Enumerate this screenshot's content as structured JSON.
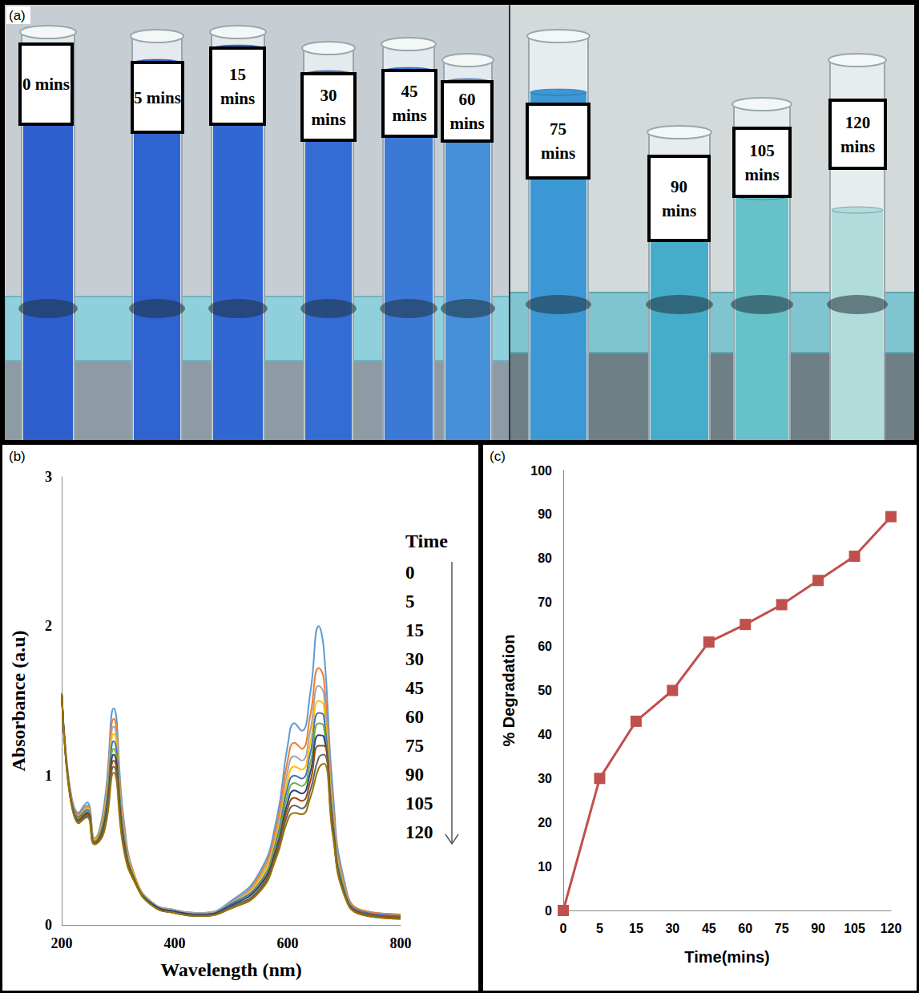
{
  "photo": {
    "letter": "(a)",
    "tubes": [
      {
        "label": "0 mins",
        "color": "#2d5fcf"
      },
      {
        "label": "5 mins",
        "color": "#2e63d0"
      },
      {
        "label": "15 mins",
        "color": "#3067d2"
      },
      {
        "label": "30 mins",
        "color": "#336dd3"
      },
      {
        "label": "45 mins",
        "color": "#3a7ad6"
      },
      {
        "label": "60 mins",
        "color": "#4590d8"
      },
      {
        "label": "75 mins",
        "color": "#3b98d4"
      },
      {
        "label": "90 mins",
        "color": "#45adc9"
      },
      {
        "label": "105 mins",
        "color": "#67c1c9"
      },
      {
        "label": "120 mins",
        "color": "#b2dcd9"
      }
    ]
  },
  "chart_data": [
    {
      "letter": "(b)",
      "type": "line",
      "xlabel": "Wavelength (nm)",
      "ylabel": "Absorbance (a.u)",
      "x": [
        200,
        230,
        245,
        258,
        275,
        292,
        310,
        330,
        360,
        400,
        450,
        500,
        550,
        580,
        600,
        612,
        625,
        640,
        655,
        664,
        680,
        700,
        730,
        800
      ],
      "series": [
        {
          "name": "0",
          "color": "#5b9bd5",
          "values": [
            1.55,
            0.75,
            0.82,
            0.58,
            0.8,
            1.45,
            0.7,
            0.32,
            0.15,
            0.1,
            0.08,
            0.16,
            0.35,
            0.7,
            1.2,
            1.35,
            1.3,
            1.55,
            2.0,
            1.85,
            0.9,
            0.3,
            0.1,
            0.07
          ]
        },
        {
          "name": "5",
          "color": "#ed7d31",
          "values": [
            1.55,
            0.74,
            0.8,
            0.58,
            0.77,
            1.38,
            0.67,
            0.32,
            0.15,
            0.1,
            0.08,
            0.15,
            0.33,
            0.66,
            1.1,
            1.22,
            1.18,
            1.4,
            1.72,
            1.65,
            0.82,
            0.28,
            0.1,
            0.07
          ]
        },
        {
          "name": "15",
          "color": "#a5a5a5",
          "values": [
            1.55,
            0.73,
            0.79,
            0.57,
            0.75,
            1.33,
            0.65,
            0.31,
            0.15,
            0.1,
            0.08,
            0.15,
            0.31,
            0.62,
            1.03,
            1.13,
            1.1,
            1.3,
            1.6,
            1.55,
            0.78,
            0.26,
            0.09,
            0.06
          ]
        },
        {
          "name": "30",
          "color": "#ffc000",
          "values": [
            1.55,
            0.72,
            0.78,
            0.57,
            0.73,
            1.28,
            0.62,
            0.31,
            0.14,
            0.09,
            0.07,
            0.14,
            0.3,
            0.59,
            0.97,
            1.06,
            1.04,
            1.22,
            1.5,
            1.47,
            0.74,
            0.25,
            0.09,
            0.06
          ]
        },
        {
          "name": "45",
          "color": "#4472c4",
          "values": [
            1.55,
            0.72,
            0.77,
            0.56,
            0.71,
            1.23,
            0.6,
            0.3,
            0.14,
            0.09,
            0.07,
            0.14,
            0.28,
            0.56,
            0.92,
            1.0,
            0.98,
            1.15,
            1.42,
            1.4,
            0.71,
            0.24,
            0.09,
            0.06
          ]
        },
        {
          "name": "60",
          "color": "#70ad47",
          "values": [
            1.55,
            0.71,
            0.76,
            0.56,
            0.69,
            1.18,
            0.58,
            0.3,
            0.14,
            0.09,
            0.07,
            0.13,
            0.27,
            0.54,
            0.87,
            0.95,
            0.93,
            1.08,
            1.35,
            1.33,
            0.68,
            0.23,
            0.08,
            0.05
          ]
        },
        {
          "name": "75",
          "color": "#264478",
          "values": [
            1.55,
            0.7,
            0.75,
            0.55,
            0.67,
            1.14,
            0.56,
            0.29,
            0.14,
            0.09,
            0.07,
            0.13,
            0.26,
            0.51,
            0.82,
            0.9,
            0.88,
            1.02,
            1.27,
            1.26,
            0.66,
            0.22,
            0.08,
            0.05
          ]
        },
        {
          "name": "90",
          "color": "#9e480e",
          "values": [
            1.55,
            0.7,
            0.74,
            0.55,
            0.65,
            1.1,
            0.54,
            0.29,
            0.13,
            0.08,
            0.06,
            0.12,
            0.24,
            0.49,
            0.78,
            0.85,
            0.83,
            0.96,
            1.2,
            1.2,
            0.64,
            0.21,
            0.08,
            0.05
          ]
        },
        {
          "name": "105",
          "color": "#636363",
          "values": [
            1.55,
            0.69,
            0.73,
            0.54,
            0.64,
            1.06,
            0.52,
            0.28,
            0.13,
            0.08,
            0.06,
            0.12,
            0.23,
            0.47,
            0.74,
            0.8,
            0.78,
            0.9,
            1.12,
            1.14,
            0.62,
            0.21,
            0.07,
            0.04
          ]
        },
        {
          "name": "120",
          "color": "#997300",
          "values": [
            1.55,
            0.68,
            0.72,
            0.54,
            0.62,
            1.02,
            0.5,
            0.28,
            0.13,
            0.08,
            0.06,
            0.11,
            0.22,
            0.45,
            0.7,
            0.75,
            0.74,
            0.85,
            1.05,
            1.08,
            0.6,
            0.2,
            0.07,
            0.04
          ]
        }
      ],
      "xlim": [
        200,
        800
      ],
      "xticks": [
        200,
        400,
        600,
        800
      ],
      "ylim": [
        0,
        3
      ],
      "yticks": [
        0,
        1,
        2,
        3
      ],
      "grid": false,
      "legend": "right",
      "legend_title": "Time",
      "marker": "none"
    },
    {
      "letter": "(c)",
      "type": "line",
      "xlabel": "Time(mins)",
      "ylabel": "% Degradation",
      "categories": [
        "0",
        "5",
        "15",
        "30",
        "45",
        "60",
        "75",
        "90",
        "105",
        "120"
      ],
      "values": [
        0,
        30,
        43,
        50,
        61,
        65,
        69.5,
        75,
        80.5,
        89.5
      ],
      "color": "#c0504d",
      "marker": "square",
      "ylim": [
        0,
        100
      ],
      "yticks": [
        0,
        10,
        20,
        30,
        40,
        50,
        60,
        70,
        80,
        90,
        100
      ],
      "grid": false
    }
  ]
}
